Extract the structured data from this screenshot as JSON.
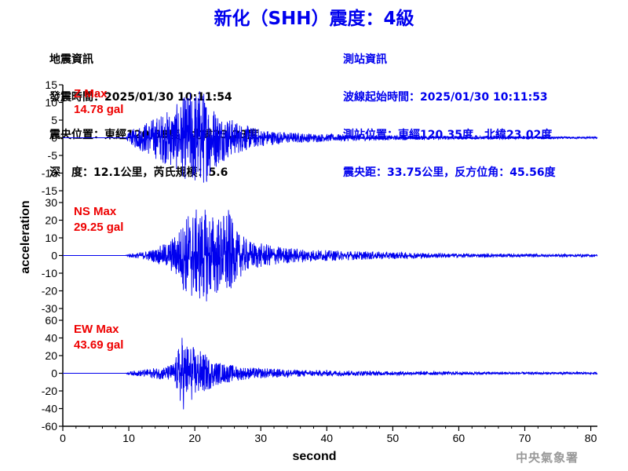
{
  "header": {
    "title": "新化（SHH）震度：4級"
  },
  "quake_info": {
    "heading": "地震資訊",
    "time": "發震時間：2025/01/30 10:11:54",
    "epicenter": "震央位置：東經120.58度，北緯23.23度",
    "depth_mag": "深　度：12.1公里，芮氏規模：5.6"
  },
  "station_info": {
    "heading": "測站資訊",
    "onset": "波線起始時間：2025/01/30 10:11:53",
    "location": "測站位置：東經120.35度，北緯23.02度",
    "distance": "震央距：33.75公里，反方位角：45.56度"
  },
  "agency": "中央氣象署",
  "colors": {
    "trace": "#0000ee",
    "max_label": "#ee0000",
    "title": "#0000ee",
    "axis": "#000000"
  },
  "chart_data": {
    "type": "line",
    "xlabel": "second",
    "ylabel": "acceleration",
    "xlim": [
      0,
      81
    ],
    "xticks": [
      "0",
      "10",
      "20",
      "30",
      "40",
      "50",
      "60",
      "70",
      "80"
    ],
    "panels": [
      {
        "name": "Z",
        "max_label": "Z Max",
        "max_value": "14.78 gal",
        "ylim": [
          -15,
          15
        ],
        "yticks": [
          "-15",
          "-10",
          "-5",
          "0",
          "5",
          "10",
          "15"
        ],
        "envelope": [
          [
            0,
            0
          ],
          [
            9.5,
            0
          ],
          [
            10,
            1.5
          ],
          [
            11,
            3
          ],
          [
            13,
            5
          ],
          [
            15,
            7
          ],
          [
            17,
            9
          ],
          [
            18,
            11
          ],
          [
            19,
            13
          ],
          [
            20,
            14.5
          ],
          [
            21,
            14.8
          ],
          [
            22,
            12
          ],
          [
            23,
            9
          ],
          [
            24,
            7
          ],
          [
            25,
            6
          ],
          [
            26,
            5
          ],
          [
            28,
            3.5
          ],
          [
            30,
            2.5
          ],
          [
            33,
            1.8
          ],
          [
            36,
            1.4
          ],
          [
            40,
            1.1
          ],
          [
            45,
            0.9
          ],
          [
            50,
            0.7
          ],
          [
            55,
            0.6
          ],
          [
            60,
            0.5
          ],
          [
            70,
            0.4
          ],
          [
            81,
            0.3
          ]
        ]
      },
      {
        "name": "NS",
        "max_label": "NS Max",
        "max_value": "29.25 gal",
        "ylim": [
          -30,
          30
        ],
        "yticks": [
          "-30",
          "-20",
          "-10",
          "0",
          "10",
          "20",
          "30"
        ],
        "envelope": [
          [
            0,
            0
          ],
          [
            9.5,
            0
          ],
          [
            10,
            1
          ],
          [
            12,
            2
          ],
          [
            14,
            4
          ],
          [
            16,
            8
          ],
          [
            17,
            12
          ],
          [
            18,
            18
          ],
          [
            19,
            25
          ],
          [
            20,
            26
          ],
          [
            21,
            27
          ],
          [
            22,
            26
          ],
          [
            23,
            24
          ],
          [
            24,
            22
          ],
          [
            25,
            29.25
          ],
          [
            26,
            15
          ],
          [
            28,
            9
          ],
          [
            30,
            7
          ],
          [
            33,
            5
          ],
          [
            36,
            4
          ],
          [
            40,
            3
          ],
          [
            45,
            2.5
          ],
          [
            50,
            2
          ],
          [
            55,
            1.6
          ],
          [
            60,
            1.2
          ],
          [
            70,
            1
          ],
          [
            81,
            0.8
          ]
        ]
      },
      {
        "name": "EW",
        "max_label": "EW Max",
        "max_value": "43.69 gal",
        "ylim": [
          -60,
          60
        ],
        "yticks": [
          "-60",
          "-40",
          "-20",
          "0",
          "20",
          "40",
          "60"
        ],
        "envelope": [
          [
            0,
            0
          ],
          [
            9.5,
            0
          ],
          [
            10,
            2
          ],
          [
            12,
            4
          ],
          [
            14,
            6
          ],
          [
            16,
            9
          ],
          [
            17,
            14
          ],
          [
            18,
            44
          ],
          [
            19,
            35
          ],
          [
            20,
            30
          ],
          [
            21,
            25
          ],
          [
            22,
            20
          ],
          [
            23,
            15
          ],
          [
            24,
            12
          ],
          [
            25,
            11
          ],
          [
            26,
            9
          ],
          [
            28,
            7
          ],
          [
            30,
            6
          ],
          [
            33,
            5
          ],
          [
            36,
            4
          ],
          [
            40,
            3.5
          ],
          [
            45,
            3
          ],
          [
            50,
            2.5
          ],
          [
            60,
            2
          ],
          [
            70,
            1.6
          ],
          [
            81,
            1.4
          ]
        ]
      }
    ]
  }
}
